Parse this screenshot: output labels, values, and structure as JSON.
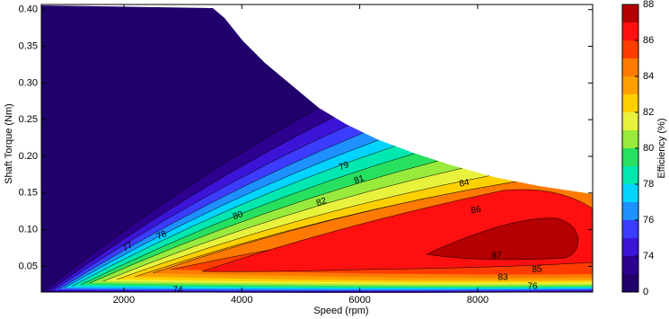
{
  "chart_data": {
    "type": "contour",
    "x_label": "Speed  (rpm)",
    "y_label": "Shaft Torque  (Nm)",
    "xlim": [
      600,
      9950
    ],
    "xticks": [
      2000,
      4000,
      6000,
      8000
    ],
    "ylim": [
      0.015,
      0.407
    ],
    "yticks": [
      0.05,
      {
        "value": 0.1,
        "label": "0.10"
      },
      0.15,
      {
        "value": 0.2,
        "label": "0.20"
      },
      0.25,
      {
        "value": 0.3,
        "label": "0.30"
      },
      0.35,
      {
        "value": 0.4,
        "label": "0.40"
      }
    ],
    "contour_labels": [
      77,
      78,
      80,
      82,
      79,
      81,
      84,
      86,
      87,
      85,
      83,
      76,
      74
    ],
    "colorbar": {
      "label": "Efficiency (%)",
      "levels": [
        0,
        73,
        74,
        75,
        76,
        77,
        78,
        79,
        80,
        81,
        82,
        83,
        84,
        85,
        86,
        87,
        88
      ],
      "colors": [
        "#21006b",
        "#2d0090",
        "#3c14d8",
        "#3c3cff",
        "#1e90ff",
        "#00d4ff",
        "#00e8b0",
        "#28e060",
        "#98ea3c",
        "#e8f23c",
        "#ffd000",
        "#ffa000",
        "#ff7a00",
        "#ff3c00",
        "#ff1010",
        "#b40000"
      ],
      "ticks": [
        0,
        74,
        76,
        78,
        80,
        82,
        84,
        86,
        88
      ]
    }
  }
}
